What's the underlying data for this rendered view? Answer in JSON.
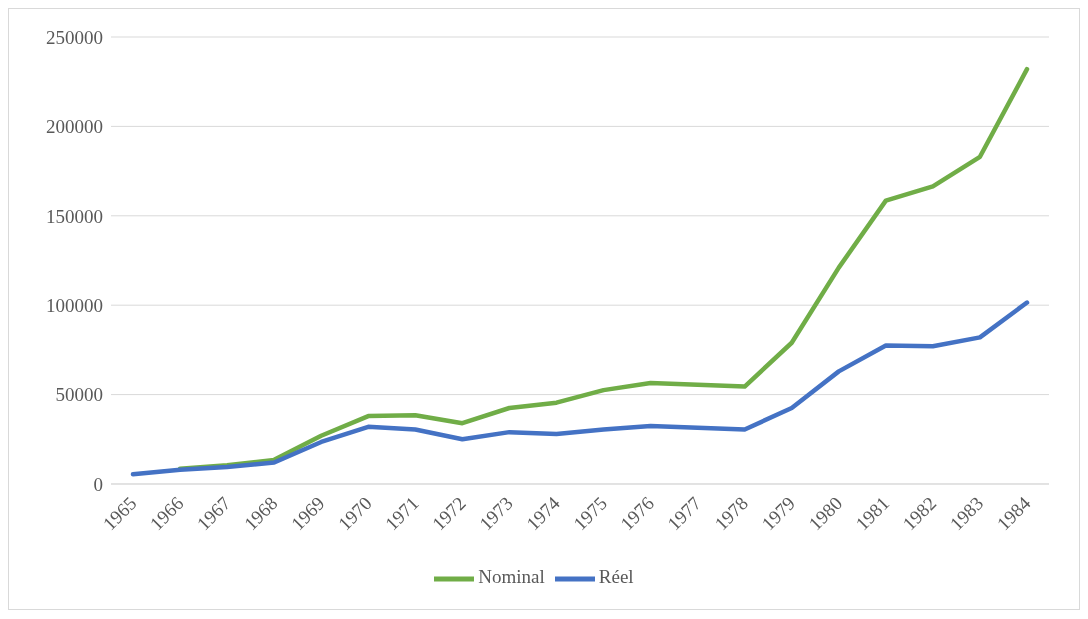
{
  "chart_data": {
    "type": "line",
    "categories": [
      "1965",
      "1966",
      "1967",
      "1968",
      "1969",
      "1970",
      "1971",
      "1972",
      "1973",
      "1974",
      "1975",
      "1976",
      "1977",
      "1978",
      "1979",
      "1980",
      "1981",
      "1982",
      "1983",
      "1984"
    ],
    "series": [
      {
        "name": "Nominal",
        "color": "#70ad47",
        "values": [
          null,
          8500,
          10500,
          13500,
          27000,
          38000,
          38500,
          34000,
          42500,
          45500,
          52500,
          56500,
          55500,
          54500,
          79000,
          121000,
          158500,
          166500,
          183000,
          232000
        ]
      },
      {
        "name": "Réel",
        "color": "#4472c4",
        "values": [
          5500,
          8000,
          9500,
          12000,
          23500,
          32000,
          30500,
          25000,
          29000,
          28000,
          30500,
          32500,
          31500,
          30500,
          42500,
          63000,
          77500,
          77000,
          82000,
          101500
        ]
      }
    ],
    "ylim": [
      0,
      250000
    ],
    "yticks": [
      0,
      50000,
      100000,
      150000,
      200000,
      250000
    ],
    "grid": "y",
    "legend": "bottom",
    "marker": "none",
    "line_style": "solid"
  }
}
